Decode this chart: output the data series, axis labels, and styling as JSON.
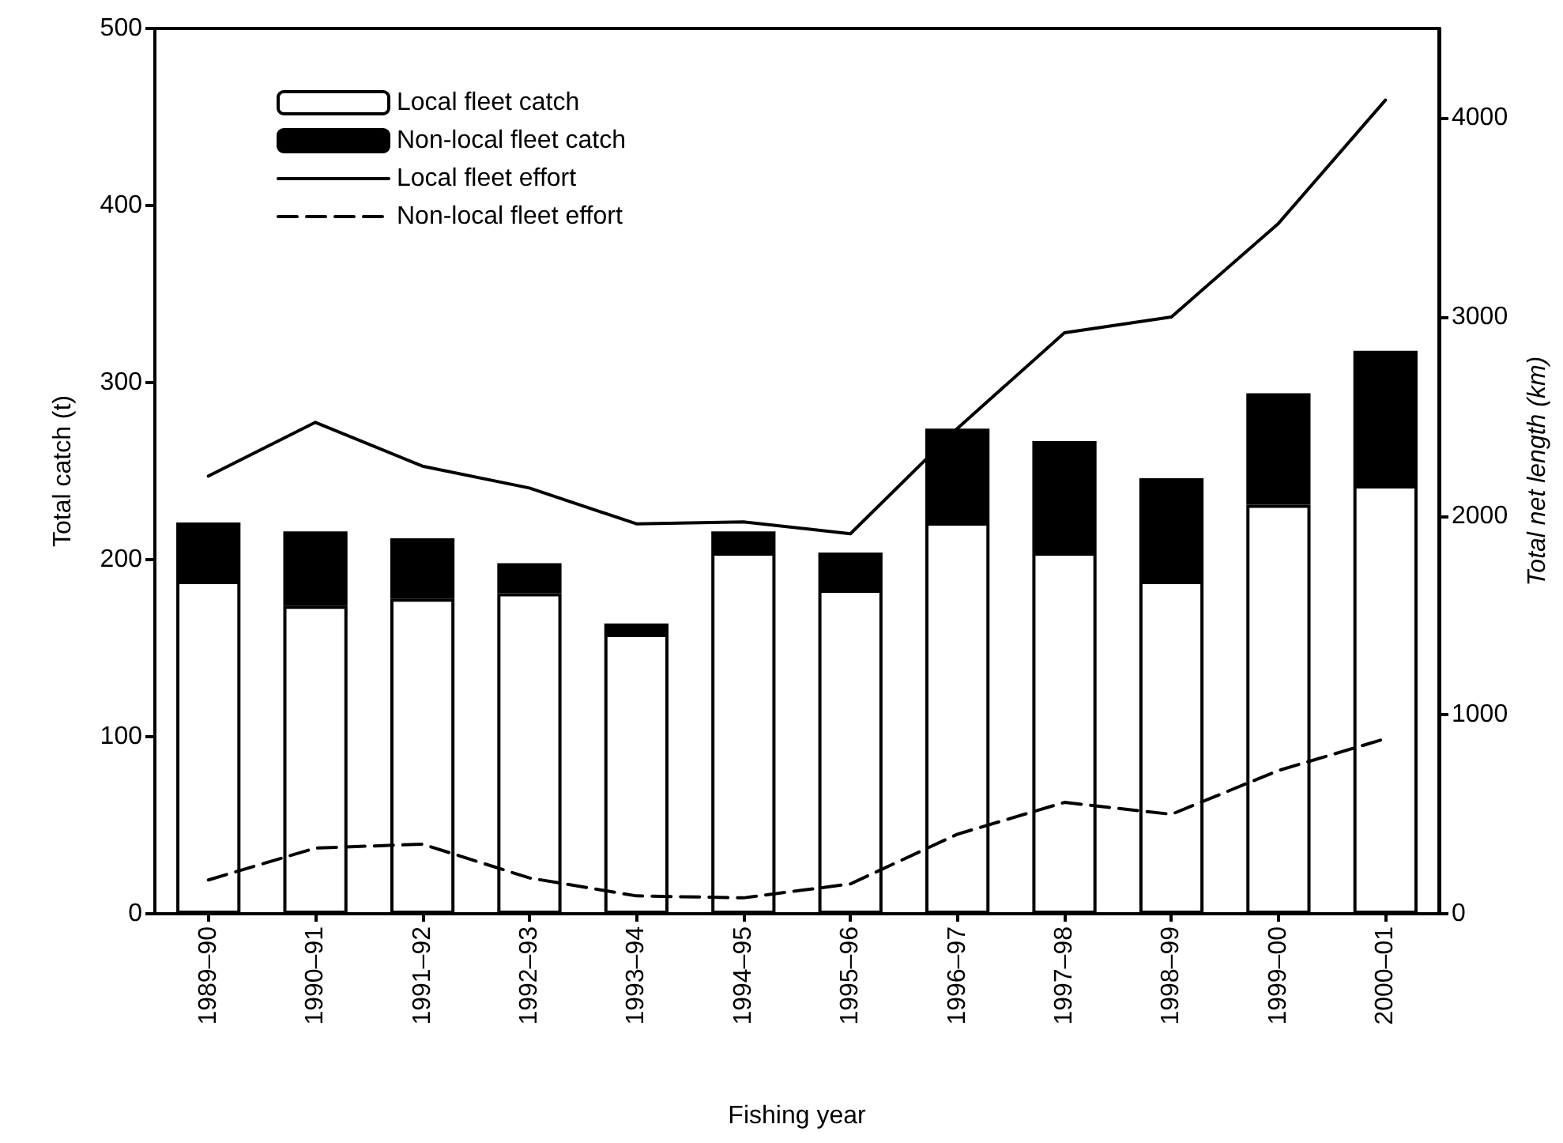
{
  "chart_data": {
    "type": "bar",
    "stacked": true,
    "xlabel": "Fishing year",
    "ylabel": "Total catch (t)",
    "y2label": "Total net length (km)",
    "categories": [
      "1989–90",
      "1990–91",
      "1991–92",
      "1992–93",
      "1993–94",
      "1994–95",
      "1995–96",
      "1996–97",
      "1997–98",
      "1998–99",
      "1999–00",
      "2000–01"
    ],
    "series": [
      {
        "name": "Local fleet catch",
        "color": "#ffffff",
        "values": [
          188,
          174,
          178,
          181,
          158,
          204,
          183,
          221,
          204,
          188,
          231,
          242
        ]
      },
      {
        "name": "Non-local fleet catch",
        "color": "#000000",
        "values": [
          33,
          42,
          34,
          17,
          6,
          12,
          21,
          53,
          63,
          58,
          63,
          76
        ]
      },
      {
        "name": "Local fleet effort",
        "type": "line",
        "axis": "y2",
        "color": "#000000",
        "line_style": "solid",
        "values": [
          2200,
          2470,
          2250,
          2140,
          1960,
          1970,
          1910,
          2440,
          2920,
          3000,
          3470,
          4090
        ]
      },
      {
        "name": "Non-local fleet effort",
        "type": "line",
        "axis": "y2",
        "color": "#000000",
        "line_style": "dashed",
        "values": [
          170,
          330,
          350,
          180,
          90,
          80,
          150,
          400,
          560,
          500,
          720,
          880
        ]
      }
    ],
    "ylim": [
      0,
      500
    ],
    "yticks": [
      0,
      100,
      200,
      300,
      400,
      500
    ],
    "y2lim": [
      0,
      4450
    ],
    "y2ticks": [
      0,
      1000,
      2000,
      3000,
      4000
    ],
    "legend": "top left",
    "grid": false,
    "marker": "none"
  }
}
